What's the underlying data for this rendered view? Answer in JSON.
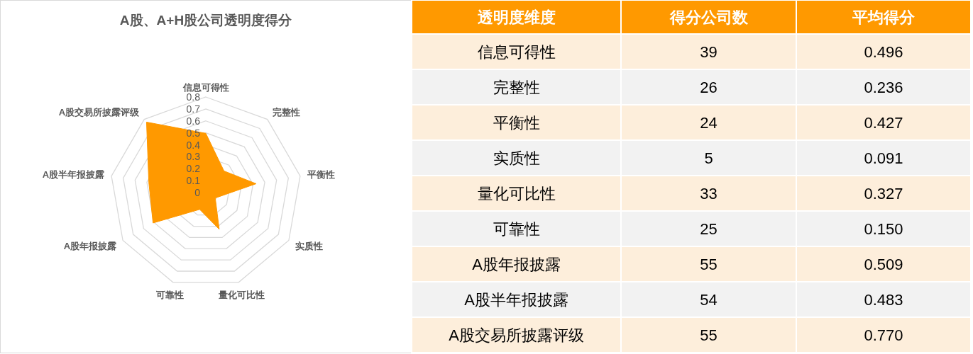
{
  "chart_data": [
    {
      "type": "radar",
      "title": "A股、A+H股公司透明度得分",
      "categories": [
        "信息可得性",
        "完整性",
        "平衡性",
        "实质性",
        "量化可比性",
        "可靠性",
        "A股年报披露",
        "A股半年报披露",
        "A股交易所披露评级"
      ],
      "series": [
        {
          "color": "#ff9900",
          "values": [
            0.496,
            0.236,
            0.427,
            0.091,
            0.327,
            0.15,
            0.509,
            0.483,
            0.77
          ]
        }
      ],
      "ylim": [
        0,
        0.8
      ],
      "yticks": [
        0,
        0.1,
        0.2,
        0.3,
        0.4,
        0.5,
        0.6,
        0.7,
        0.8
      ],
      "grid": true
    },
    {
      "type": "other",
      "ylabel": "透明度维度",
      "categories": [
        "信息可得性",
        "完整性",
        "平衡性",
        "实质性",
        "量化可比性",
        "可靠性",
        "A股年报披露",
        "A股半年报披露",
        "A股交易所披露评级"
      ],
      "series": [
        {
          "name": "得分公司数",
          "colors": [
            "#fdeedb",
            "#f2f2f2",
            "#fdeedb",
            "#f2f2f2",
            "#fdeedb",
            "#f2f2f2",
            "#fdeedb",
            "#f2f2f2",
            "#fdeedb"
          ],
          "values": [
            39,
            26,
            24,
            5,
            33,
            25,
            55,
            54,
            55
          ]
        },
        {
          "name": "平均得分",
          "colors": [
            "#fdeedb",
            "#f2f2f2",
            "#fdeedb",
            "#f2f2f2",
            "#fdeedb",
            "#f2f2f2",
            "#fdeedb",
            "#f2f2f2",
            "#fdeedb"
          ],
          "values": [
            0.496,
            0.236,
            0.427,
            0.091,
            0.327,
            0.15,
            0.509,
            0.483,
            0.77
          ],
          "value_labels": [
            "0.496",
            "0.236",
            "0.427",
            "0.091",
            "0.327",
            "0.150",
            "0.509",
            "0.483",
            "0.770"
          ]
        }
      ],
      "data_labels": true
    }
  ]
}
